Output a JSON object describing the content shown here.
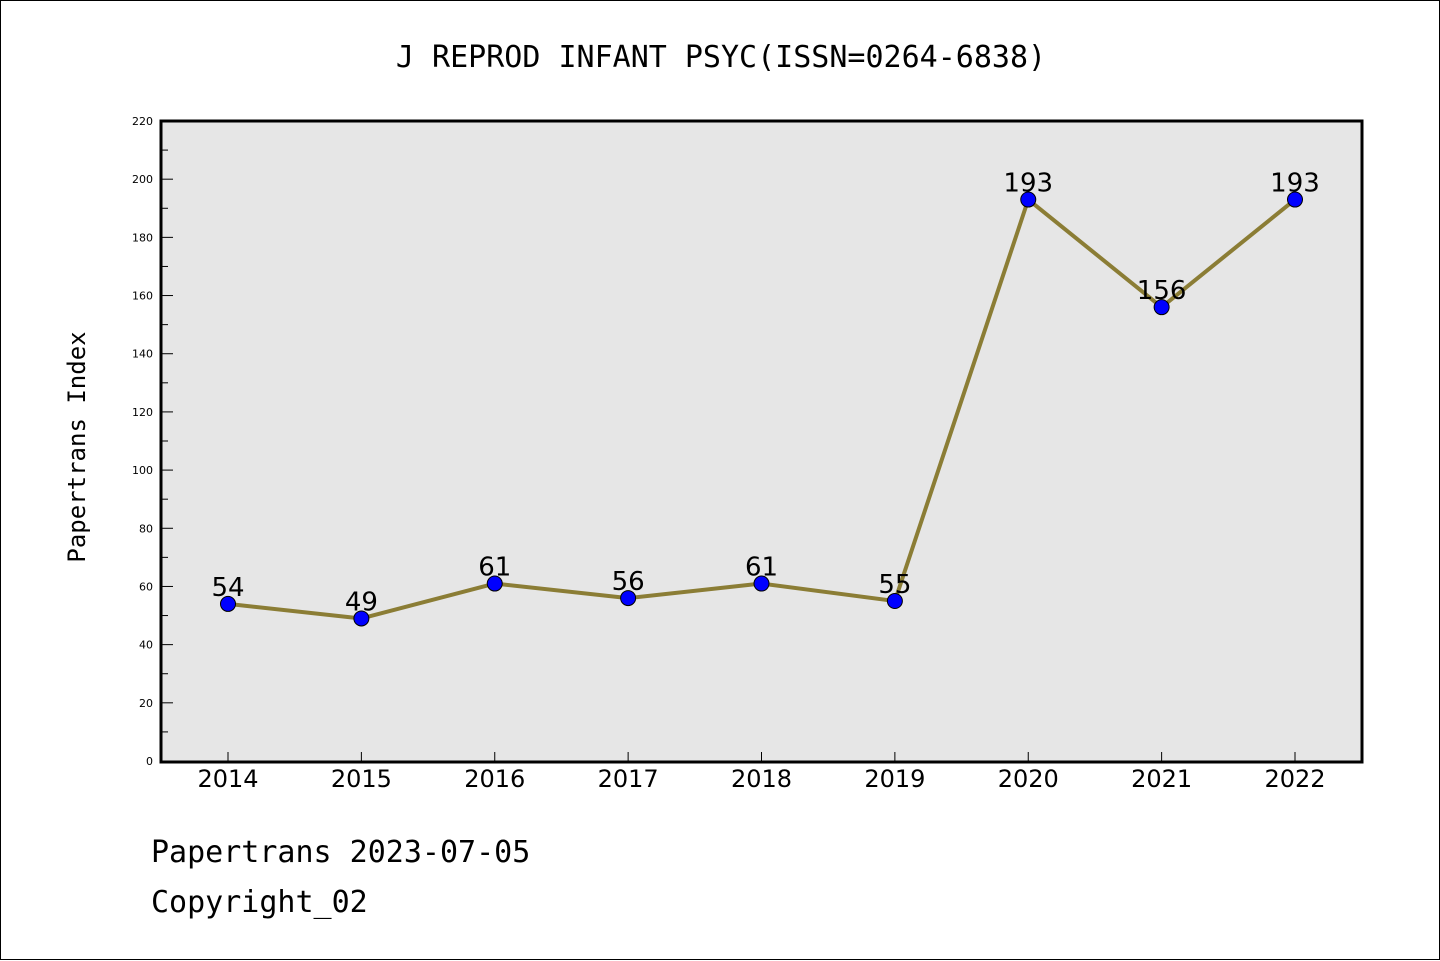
{
  "chart_data": {
    "type": "line",
    "title": "J REPROD INFANT PSYC(ISSN=0264-6838)",
    "xlabel": "",
    "ylabel": "Papertrans Index",
    "categories": [
      "2014",
      "2015",
      "2016",
      "2017",
      "2018",
      "2019",
      "2020",
      "2021",
      "2022"
    ],
    "values": [
      54,
      49,
      61,
      56,
      61,
      55,
      193,
      156,
      193
    ],
    "ylim": [
      0,
      220
    ],
    "yticks": [
      0,
      20,
      40,
      60,
      80,
      100,
      120,
      140,
      160,
      180,
      200,
      220
    ],
    "grid": false,
    "legend": "none",
    "data_labels": true
  },
  "footer": {
    "date_line": "Papertrans 2023-07-05",
    "copyright_line": "Copyright_02"
  },
  "colors": {
    "line": "#8B7D35",
    "marker": "#0000FF",
    "plot_background": "#E6E6E6",
    "page_background": "#FFFFFF"
  }
}
